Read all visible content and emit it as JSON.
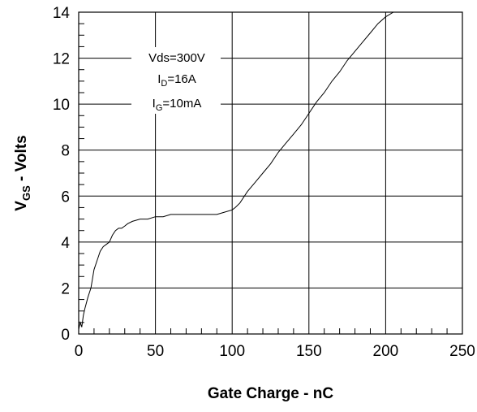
{
  "chart_data": {
    "type": "line",
    "title": "",
    "xlabel": "Gate Charge - nC",
    "ylabel": {
      "main": "V",
      "sub": "GS",
      "rest": " - Volts"
    },
    "xlim": [
      0,
      250
    ],
    "ylim": [
      0,
      14
    ],
    "xticks": [
      0,
      50,
      100,
      150,
      200,
      250
    ],
    "yticks": [
      0,
      2,
      4,
      6,
      8,
      10,
      12,
      14
    ],
    "grid": true,
    "annotation": [
      {
        "main": "Vds=300V",
        "sub": "",
        "rest": ""
      },
      {
        "main": "I",
        "sub": "D",
        "rest": "=16A"
      },
      {
        "main": "I",
        "sub": "G",
        "rest": "=10mA"
      }
    ],
    "series": [
      {
        "x": [
          0,
          1,
          2,
          3,
          4,
          6,
          8,
          10,
          12,
          14,
          16,
          18,
          20,
          22,
          24,
          26,
          28,
          30,
          32,
          35,
          40,
          45,
          50,
          55,
          60,
          65,
          70,
          75,
          80,
          85,
          90,
          95,
          100,
          102,
          105,
          110,
          115,
          120,
          125,
          130,
          135,
          140,
          145,
          150,
          155,
          160,
          165,
          170,
          175,
          180,
          185,
          190,
          195,
          200,
          205,
          210
        ],
        "y": [
          0.2,
          0.5,
          0.3,
          0.8,
          1.1,
          1.6,
          2.0,
          2.8,
          3.2,
          3.6,
          3.8,
          3.9,
          4.0,
          4.3,
          4.5,
          4.6,
          4.6,
          4.7,
          4.8,
          4.9,
          5.0,
          5.0,
          5.1,
          5.1,
          5.2,
          5.2,
          5.2,
          5.2,
          5.2,
          5.2,
          5.2,
          5.3,
          5.4,
          5.5,
          5.7,
          6.2,
          6.6,
          7.0,
          7.4,
          7.9,
          8.3,
          8.7,
          9.1,
          9.6,
          10.1,
          10.5,
          11.0,
          11.4,
          11.9,
          12.3,
          12.7,
          13.1,
          13.5,
          13.8,
          14.0,
          14.0
        ]
      }
    ]
  }
}
